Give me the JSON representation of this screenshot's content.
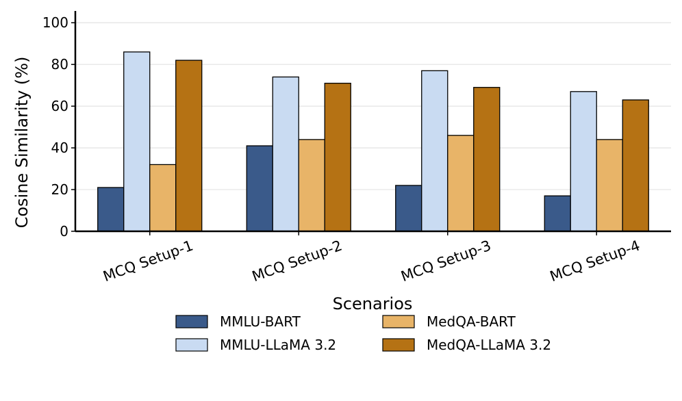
{
  "chart_data": {
    "type": "bar",
    "title": "",
    "xlabel": "Scenarios",
    "ylabel": "Cosine Similarity (%)",
    "ylim": [
      0,
      105
    ],
    "yticks": [
      0,
      20,
      40,
      60,
      80,
      100
    ],
    "grid": true,
    "legend_position": "bottom-center",
    "categories": [
      "MCQ Setup-1",
      "MCQ Setup-2",
      "MCQ Setup-3",
      "MCQ Setup-4"
    ],
    "series": [
      {
        "name": "MMLU-BART",
        "color": "#3a5a8a",
        "values": [
          21,
          41,
          22,
          17
        ]
      },
      {
        "name": "MMLU-LLaMA 3.2",
        "color": "#c9dbf2",
        "values": [
          86,
          74,
          77,
          67
        ]
      },
      {
        "name": "MedQA-BART",
        "color": "#e8b468",
        "values": [
          32,
          44,
          46,
          44
        ]
      },
      {
        "name": "MedQA-LLaMA 3.2",
        "color": "#b57214",
        "values": [
          82,
          71,
          69,
          63
        ]
      }
    ]
  }
}
